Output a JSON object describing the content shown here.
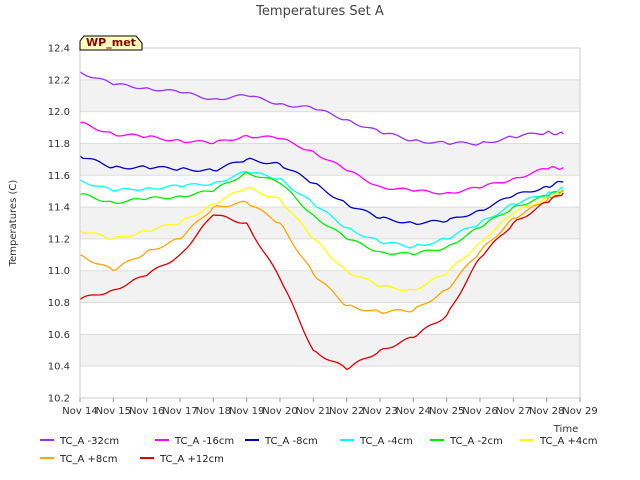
{
  "chart_data": {
    "type": "line",
    "title": "Temperatures Set A",
    "xlabel": "Time",
    "ylabel": "Temperatures (C)",
    "badge": "WP_met",
    "x": [
      "Nov 14",
      "Nov 15",
      "Nov 16",
      "Nov 17",
      "Nov 18",
      "Nov 19",
      "Nov 20",
      "Nov 21",
      "Nov 22",
      "Nov 23",
      "Nov 24",
      "Nov 25",
      "Nov 26",
      "Nov 27",
      "Nov 28",
      "Nov 28.5"
    ],
    "x_ticks": [
      "Nov 14",
      "Nov 15",
      "Nov 16",
      "Nov 17",
      "Nov 18",
      "Nov 19",
      "Nov 20",
      "Nov 21",
      "Nov 22",
      "Nov 23",
      "Nov 24",
      "Nov 25",
      "Nov 26",
      "Nov 27",
      "Nov 28",
      "Nov 29"
    ],
    "y_ticks": [
      "10.2",
      "10.4",
      "10.6",
      "10.8",
      "11.0",
      "11.2",
      "11.4",
      "11.6",
      "11.8",
      "12.0",
      "12.2",
      "12.4"
    ],
    "xlim": [
      "Nov 14",
      "Nov 29"
    ],
    "ylim": [
      10.2,
      12.4
    ],
    "grid": true,
    "legend_position": "bottom",
    "series": [
      {
        "name": "TC_A -32cm",
        "color": "#9b30ff",
        "values": [
          12.25,
          12.17,
          12.15,
          12.12,
          12.08,
          12.1,
          12.05,
          12.02,
          11.95,
          11.87,
          11.82,
          11.8,
          11.8,
          11.84,
          11.87,
          11.86
        ]
      },
      {
        "name": "TC_A -16cm",
        "color": "#ff00ff",
        "values": [
          11.93,
          11.86,
          11.84,
          11.82,
          11.8,
          11.85,
          11.83,
          11.75,
          11.63,
          11.53,
          11.5,
          11.49,
          11.52,
          11.58,
          11.64,
          11.65
        ]
      },
      {
        "name": "TC_A -8cm",
        "color": "#0000cd",
        "values": [
          11.72,
          11.65,
          11.65,
          11.64,
          11.63,
          11.7,
          11.67,
          11.55,
          11.42,
          11.33,
          11.3,
          11.31,
          11.38,
          11.47,
          11.53,
          11.56
        ]
      },
      {
        "name": "TC_A -4cm",
        "color": "#00ffff",
        "values": [
          11.57,
          11.5,
          11.52,
          11.53,
          11.55,
          11.62,
          11.58,
          11.42,
          11.27,
          11.18,
          11.15,
          11.2,
          11.3,
          11.42,
          11.48,
          11.52
        ]
      },
      {
        "name": "TC_A -2cm",
        "color": "#00ee00",
        "values": [
          11.48,
          11.43,
          11.45,
          11.47,
          11.5,
          11.62,
          11.55,
          11.35,
          11.2,
          11.12,
          11.1,
          11.15,
          11.27,
          11.4,
          11.47,
          11.51
        ]
      },
      {
        "name": "TC_A +4cm",
        "color": "#ffff00",
        "values": [
          11.25,
          11.2,
          11.25,
          11.3,
          11.42,
          11.52,
          11.45,
          11.2,
          11.0,
          10.9,
          10.88,
          10.98,
          11.18,
          11.36,
          11.46,
          11.5
        ]
      },
      {
        "name": "TC_A +8cm",
        "color": "#ffa500",
        "values": [
          11.1,
          11.0,
          11.12,
          11.2,
          11.4,
          11.43,
          11.3,
          10.98,
          10.78,
          10.74,
          10.75,
          10.88,
          11.12,
          11.33,
          11.44,
          11.5
        ]
      },
      {
        "name": "TC_A +12cm",
        "color": "#e00000",
        "values": [
          10.82,
          10.88,
          10.97,
          11.1,
          11.35,
          11.3,
          10.95,
          10.5,
          10.38,
          10.5,
          10.58,
          10.72,
          11.08,
          11.3,
          11.43,
          11.49
        ]
      }
    ]
  }
}
